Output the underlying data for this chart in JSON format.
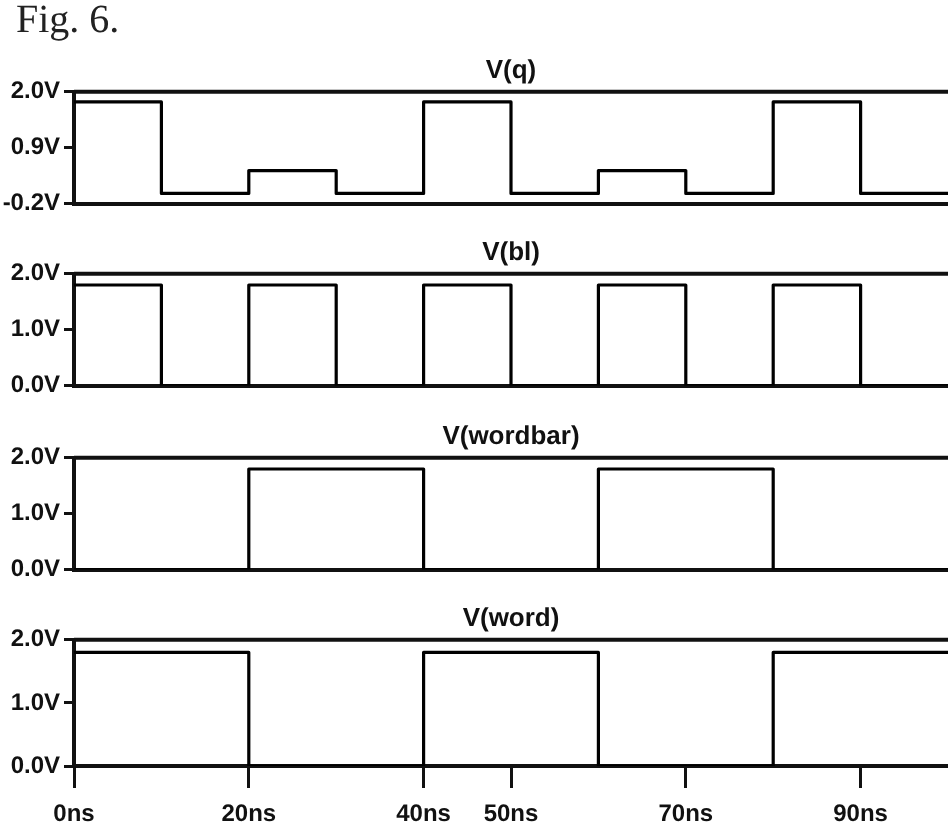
{
  "chart_data": [
    {
      "type": "step",
      "title": "V(q)",
      "x": [
        0,
        10,
        20,
        30,
        40,
        50,
        60,
        70,
        80,
        90,
        100
      ],
      "values": [
        1.8,
        0,
        0.45,
        0,
        1.8,
        0,
        0.45,
        0,
        1.8,
        0,
        0
      ],
      "color": "#000000",
      "xlim": [
        0,
        100
      ],
      "ylim": [
        -0.2,
        2.0
      ],
      "yticks": [
        {
          "value": -0.2,
          "label": "-0.2V"
        },
        {
          "value": 0.9,
          "label": "0.9V"
        },
        {
          "value": 2.0,
          "label": "2.0V"
        }
      ],
      "tick_labels": "y",
      "annotations": [
        "Fig. 6."
      ]
    },
    {
      "type": "step",
      "title": "V(bl)",
      "x": [
        0,
        10,
        20,
        30,
        40,
        50,
        60,
        70,
        80,
        90,
        100
      ],
      "values": [
        1.8,
        0,
        1.8,
        0,
        1.8,
        0,
        1.8,
        0,
        1.8,
        0,
        0
      ],
      "color": "#000000",
      "xlim": [
        0,
        100
      ],
      "ylim": [
        0,
        2.0
      ],
      "yticks": [
        {
          "value": 0,
          "label": "0.0V"
        },
        {
          "value": 1.0,
          "label": "1.0V"
        },
        {
          "value": 2.0,
          "label": "2.0V"
        }
      ],
      "tick_labels": "y"
    },
    {
      "type": "step",
      "title": "V(wordbar)",
      "x": [
        0,
        20,
        40,
        60,
        80,
        100
      ],
      "values": [
        0,
        1.8,
        0,
        1.8,
        0,
        0
      ],
      "color": "#000000",
      "xlim": [
        0,
        100
      ],
      "ylim": [
        0,
        2.0
      ],
      "yticks": [
        {
          "value": 0,
          "label": "0.0V"
        },
        {
          "value": 1.0,
          "label": "1.0V"
        },
        {
          "value": 2.0,
          "label": "2.0V"
        }
      ],
      "tick_labels": "y"
    },
    {
      "type": "step",
      "title": "V(word)",
      "x": [
        0,
        20,
        40,
        60,
        80,
        100
      ],
      "values": [
        1.8,
        0,
        1.8,
        0,
        1.8,
        1.8
      ],
      "color": "#000000",
      "xlim": [
        0,
        100
      ],
      "xticks": [
        {
          "value": 0,
          "label": "0ns"
        },
        {
          "value": 20,
          "label": "20ns"
        },
        {
          "value": 40,
          "label": "40ns"
        },
        {
          "value": 50,
          "label": "50ns"
        },
        {
          "value": 70,
          "label": "70ns"
        },
        {
          "value": 90,
          "label": "90ns"
        }
      ],
      "ylim": [
        0,
        2.0
      ],
      "yticks": [
        {
          "value": 0,
          "label": "0.0V"
        },
        {
          "value": 1.0,
          "label": "1.0V"
        },
        {
          "value": 2.0,
          "label": "2.0V"
        }
      ]
    }
  ]
}
